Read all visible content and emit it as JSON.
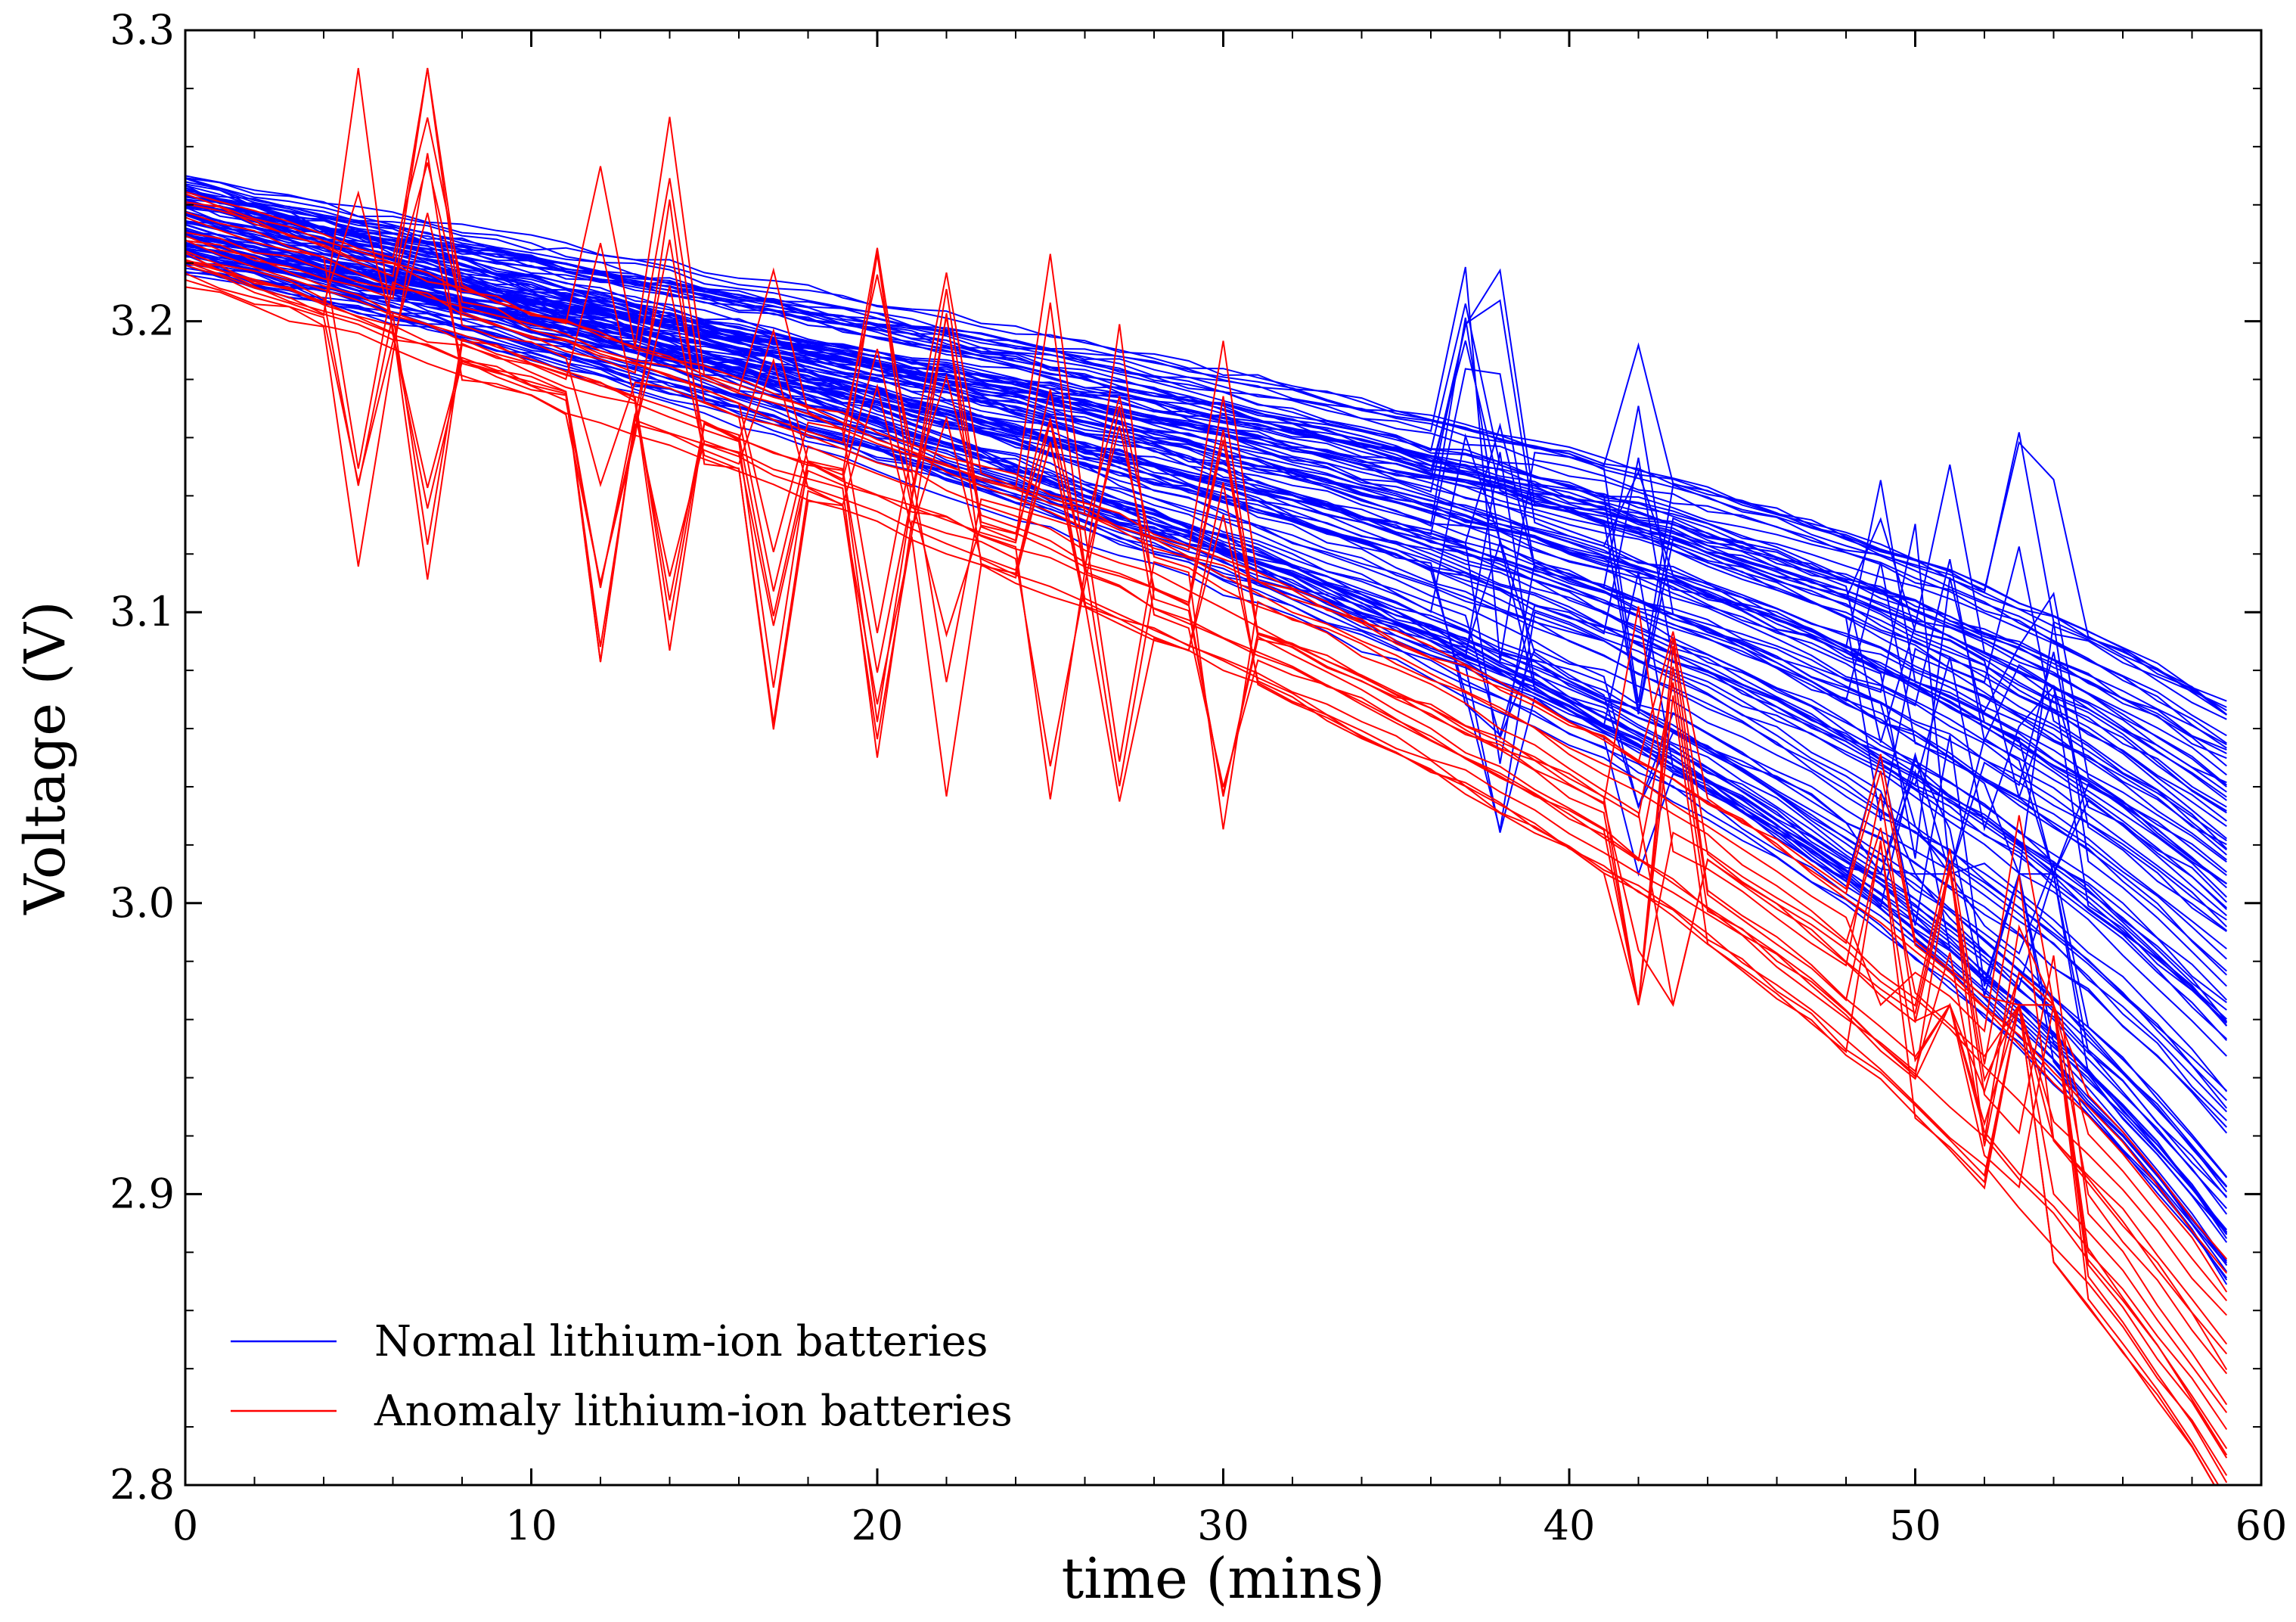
{
  "chart_data": {
    "type": "line",
    "title": "",
    "xlabel": "time (mins)",
    "ylabel": "Voltage (V)",
    "xlim": [
      0,
      60
    ],
    "ylim": [
      2.8,
      3.3
    ],
    "x_ticks": [
      0,
      10,
      20,
      30,
      40,
      50,
      60
    ],
    "x_tick_labels": [
      "0",
      "10",
      "20",
      "30",
      "40",
      "50",
      "60"
    ],
    "y_ticks": [
      2.8,
      2.9,
      3.0,
      3.1,
      3.2,
      3.3
    ],
    "y_tick_labels": [
      "2.8",
      "2.9",
      "3.0",
      "3.1",
      "3.2",
      "3.3"
    ],
    "grid": false,
    "legend_position": "bottom-left",
    "x": [
      0,
      1,
      2,
      3,
      4,
      5,
      6,
      7,
      8,
      9,
      10,
      11,
      12,
      13,
      14,
      15,
      16,
      17,
      18,
      19,
      20,
      21,
      22,
      23,
      24,
      25,
      26,
      27,
      28,
      29,
      30,
      31,
      32,
      33,
      34,
      35,
      36,
      37,
      38,
      39,
      40,
      41,
      42,
      43,
      44,
      45,
      46,
      47,
      48,
      49,
      50,
      51,
      52,
      53,
      54,
      55,
      56,
      57,
      58,
      59
    ],
    "groups": [
      {
        "name": "Normal lithium-ion batteries",
        "color": "#0000ff",
        "series_count": 100,
        "start_voltage_range": [
          3.218,
          3.25
        ],
        "end_voltage_range": [
          2.87,
          3.07
        ],
        "spike_times": [
          37,
          38,
          42,
          49,
          50,
          51,
          53,
          54
        ],
        "spike_range": [
          3.01,
          3.24
        ]
      },
      {
        "name": "Anomaly lithium-ion batteries",
        "color": "#ff0000",
        "series_count": 20,
        "start_voltage_range": [
          3.213,
          3.25
        ],
        "end_voltage_range": [
          2.79,
          2.88
        ],
        "spike_times": [
          5,
          7,
          12,
          14,
          17,
          20,
          22,
          25,
          27,
          30,
          42,
          43,
          49,
          51,
          53,
          54
        ],
        "spike_range": [
          2.965,
          3.287
        ]
      }
    ],
    "legend": [
      "Normal lithium-ion batteries",
      "Anomaly lithium-ion batteries"
    ]
  }
}
